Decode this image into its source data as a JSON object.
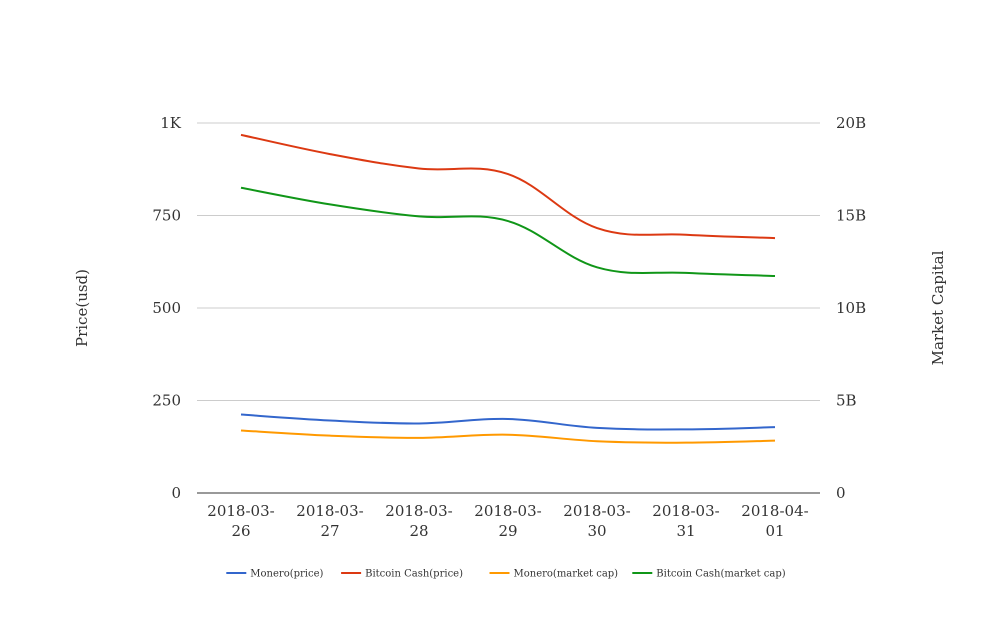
{
  "chart_data": {
    "type": "line",
    "x": [
      "2018-03-26",
      "2018-03-27",
      "2018-03-28",
      "2018-03-29",
      "2018-03-30",
      "2018-03-31",
      "2018-04-01"
    ],
    "x_tick_labels": [
      [
        "2018-03-",
        "26"
      ],
      [
        "2018-03-",
        "27"
      ],
      [
        "2018-03-",
        "28"
      ],
      [
        "2018-03-",
        "29"
      ],
      [
        "2018-03-",
        "30"
      ],
      [
        "2018-03-",
        "31"
      ],
      [
        "2018-04-",
        "01"
      ]
    ],
    "ylabel_left": "Price(usd)",
    "ylabel_right": "Market Capital",
    "ylim_left": [
      0,
      1000
    ],
    "ylim_right": [
      0,
      20000000000
    ],
    "yticks_left": [
      0,
      250,
      500,
      750,
      1000
    ],
    "yticks_left_labels": [
      "0",
      "250",
      "500",
      "750",
      "1K"
    ],
    "yticks_right": [
      0,
      5000000000,
      10000000000,
      15000000000,
      20000000000
    ],
    "yticks_right_labels": [
      "0",
      "5B",
      "10B",
      "15B",
      "20B"
    ],
    "grid": true,
    "smooth": true,
    "legend_position": "bottom",
    "series": [
      {
        "name": "Monero(price)",
        "axis": "left",
        "color": "#3366cc",
        "values": [
          212,
          196,
          188,
          200,
          176,
          172,
          178
        ]
      },
      {
        "name": "Bitcoin Cash(price)",
        "axis": "left",
        "color": "#dc3912",
        "values": [
          968,
          916,
          877,
          862,
          716,
          698,
          689
        ]
      },
      {
        "name": "Monero(market cap)",
        "axis": "right",
        "color": "#ff9900",
        "values": [
          3380000000,
          3100000000,
          2980000000,
          3150000000,
          2800000000,
          2720000000,
          2830000000
        ]
      },
      {
        "name": "Bitcoin Cash(market cap)",
        "axis": "right",
        "color": "#109618",
        "values": [
          16500000000,
          15600000000,
          14950000000,
          14700000000,
          12200000000,
          11900000000,
          11730000000
        ]
      }
    ]
  }
}
